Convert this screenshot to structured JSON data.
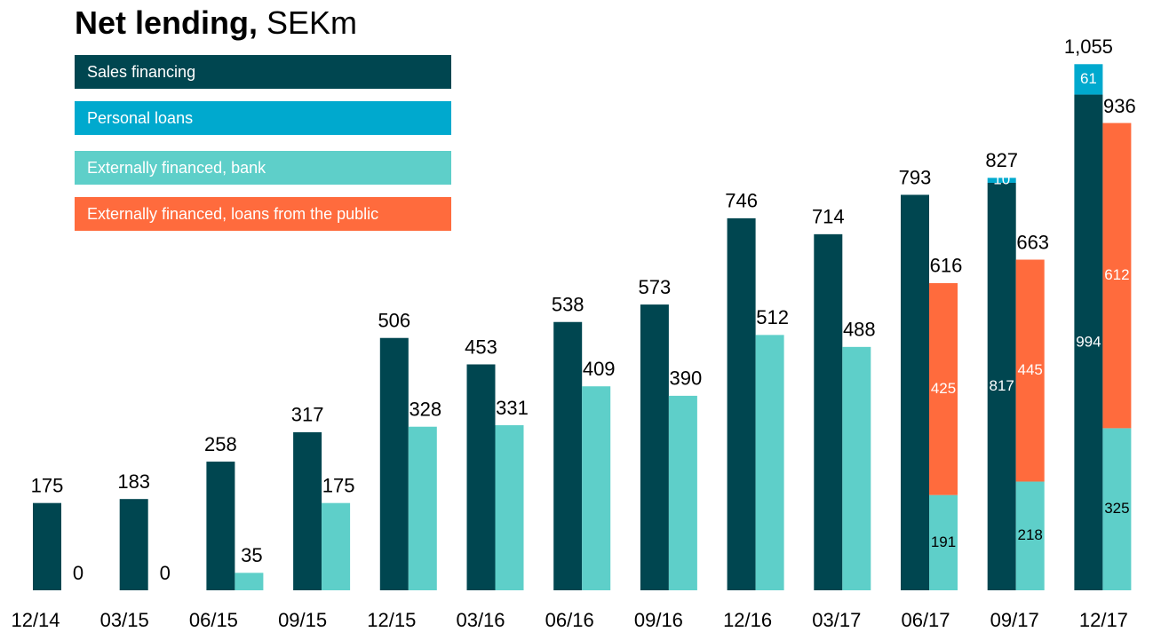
{
  "chart_data": {
    "type": "stacked_grouped_bar",
    "title": "Net lending,",
    "unit": "SEKm",
    "categories": [
      "12/14",
      "03/15",
      "06/15",
      "09/15",
      "12/15",
      "03/16",
      "06/16",
      "09/16",
      "12/16",
      "03/17",
      "06/17",
      "09/17",
      "12/17"
    ],
    "ylim": [
      0,
      1100
    ],
    "series": [
      {
        "name": "Sales financing",
        "color": "#004650",
        "stack": 0,
        "text_color": "#ffffff",
        "values": [
          175,
          183,
          258,
          317,
          506,
          453,
          538,
          573,
          746,
          714,
          793,
          817,
          994
        ]
      },
      {
        "name": "Personal loans",
        "color": "#00a9ce",
        "stack": 0,
        "text_color": "#ffffff",
        "values": [
          null,
          null,
          null,
          null,
          null,
          null,
          null,
          null,
          null,
          null,
          null,
          10,
          61
        ]
      },
      {
        "name": "Externally financed, bank",
        "color": "#5ecfc9",
        "stack": 1,
        "text_color": "#000000",
        "values": [
          0,
          0,
          35,
          175,
          328,
          331,
          409,
          390,
          512,
          488,
          191,
          218,
          325
        ]
      },
      {
        "name": "Externally financed, loans from the public",
        "color": "#ff6b3d",
        "stack": 1,
        "text_color": "#ffffff",
        "values": [
          null,
          null,
          null,
          null,
          null,
          null,
          null,
          null,
          null,
          null,
          425,
          445,
          612
        ]
      }
    ],
    "stack_totals": [
      {
        "values": [
          175,
          183,
          258,
          317,
          506,
          453,
          538,
          573,
          746,
          714,
          793,
          827,
          1055
        ],
        "value_labels": [
          null,
          null,
          null,
          null,
          null,
          null,
          null,
          null,
          null,
          null,
          null,
          null,
          "1,055"
        ]
      },
      {
        "values": [
          0,
          0,
          35,
          175,
          328,
          331,
          409,
          390,
          512,
          488,
          616,
          663,
          936
        ]
      }
    ]
  }
}
